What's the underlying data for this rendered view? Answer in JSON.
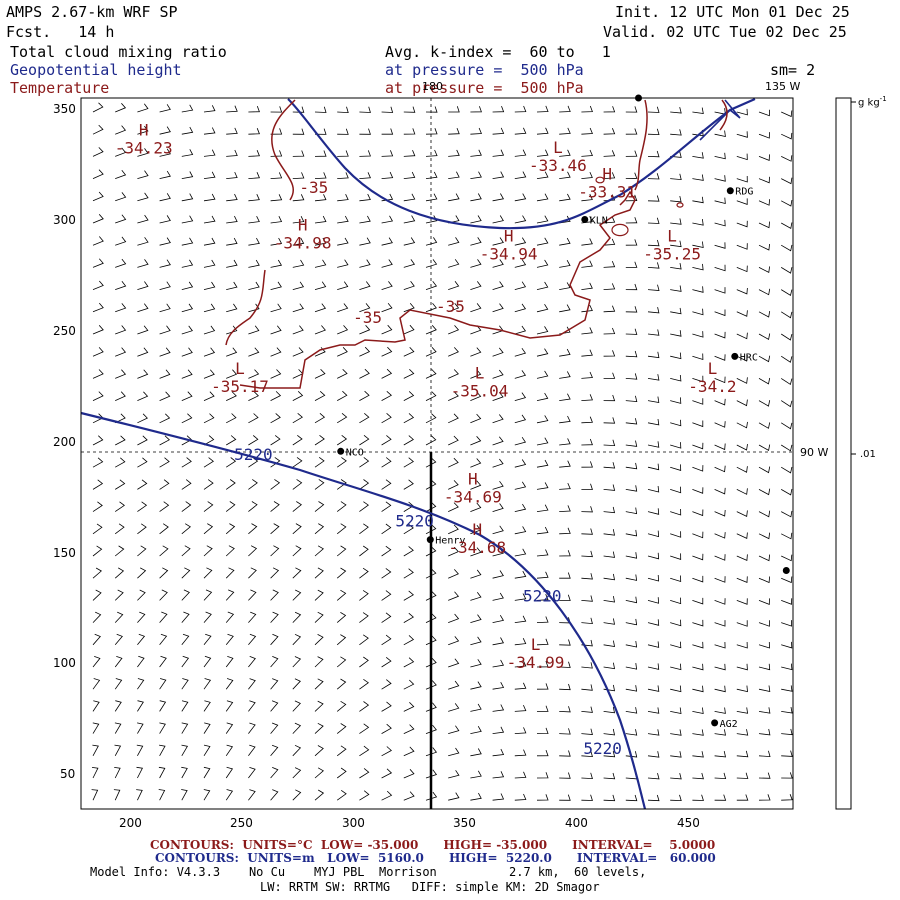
{
  "header": {
    "title": "AMPS 2.67-km WRF SP",
    "forecast": "Fcst.   14 h",
    "init": "Init. 12 UTC Mon 01 Dec 25",
    "valid": "Valid. 02 UTC Tue 02 Dec 25",
    "field1": "Total cloud mixing ratio",
    "field2": "Geopotential height",
    "field3": "Temperature",
    "avg": "Avg. k-index =  60 to   1",
    "pressure1": "at pressure =  500 hPa",
    "pressure2": "at pressure =  500 hPa",
    "smoothing": "sm= 2"
  },
  "axes": {
    "x_ticks": [
      "200",
      "250",
      "300",
      "350",
      "400",
      "450"
    ],
    "y_ticks": [
      "350",
      "300",
      "250",
      "200",
      "150",
      "100",
      "50"
    ],
    "x_range": [
      177,
      495
    ],
    "y_range": [
      33,
      355
    ]
  },
  "meridians": {
    "lon_180": "180",
    "lon_135w": "135 W",
    "lon_90w": "90 W"
  },
  "colorbar": {
    "unit": "g kg",
    "unit_sup": "-1",
    "value": ".01"
  },
  "stations": [
    {
      "name": "RDG",
      "x": 467,
      "y": 313
    },
    {
      "name": "KLN",
      "x": 402,
      "y": 300
    },
    {
      "name": "HRC",
      "x": 469,
      "y": 238
    },
    {
      "name": "NCO",
      "x": 293,
      "y": 195
    },
    {
      "name": "Henry",
      "x": 333,
      "y": 155
    },
    {
      "name": "AG2",
      "x": 460,
      "y": 72
    },
    {
      "name": "",
      "x": 426,
      "y": 355
    },
    {
      "name": "",
      "x": 492,
      "y": 141
    }
  ],
  "extrema": [
    {
      "type": "H",
      "value": "-34.23",
      "x": 205,
      "y": 338
    },
    {
      "type": "L",
      "value": "-33.46",
      "x": 390,
      "y": 330
    },
    {
      "type": "H",
      "value": "-33.31",
      "x": 412,
      "y": 318
    },
    {
      "type": "H",
      "value": "-34.98",
      "x": 276,
      "y": 295
    },
    {
      "type": "H",
      "value": "-34.94",
      "x": 368,
      "y": 290
    },
    {
      "type": "L",
      "value": "-35.25",
      "x": 441,
      "y": 290
    },
    {
      "type": "L",
      "value": "-35.17",
      "x": 248,
      "y": 230
    },
    {
      "type": "L",
      "value": "-35.04",
      "x": 355,
      "y": 228
    },
    {
      "type": "L",
      "value": "-34.2",
      "x": 459,
      "y": 230
    },
    {
      "type": "H",
      "value": "-34.69",
      "x": 352,
      "y": 180
    },
    {
      "type": "H",
      "value": "-34.68",
      "x": 354,
      "y": 157
    },
    {
      "type": "L",
      "value": "-34.99",
      "x": 380,
      "y": 105
    }
  ],
  "contour_labels": {
    "temp": [
      {
        "text": "-35",
        "x": 281,
        "y": 312
      },
      {
        "text": "-35",
        "x": 305,
        "y": 253
      },
      {
        "text": "-35",
        "x": 342,
        "y": 258
      }
    ],
    "height": [
      {
        "text": "5220",
        "x": 254,
        "y": 191
      },
      {
        "text": "5220",
        "x": 326,
        "y": 161
      },
      {
        "text": "5220",
        "x": 383,
        "y": 127
      },
      {
        "text": "5220",
        "x": 410,
        "y": 58
      }
    ]
  },
  "footer": {
    "temp_contours": "CONTOURS:  UNITS=°C  LOW= -35.000      HIGH= -35.000      INTERVAL=    5.0000",
    "height_contours": "CONTOURS:  UNITS=m   LOW=  5160.0      HIGH=  5220.0      INTERVAL=   60.000",
    "model_info": "Model Info: V4.3.3    No Cu    MYJ PBL  Morrison          2.7 km,  60 levels,",
    "model_info2": "LW: RRTM SW: RRTMG   DIFF: simple KM: 2D Smagor"
  },
  "colors": {
    "temperature": "#8b1a1a",
    "height": "#1f2a8c",
    "text": "#000000"
  }
}
